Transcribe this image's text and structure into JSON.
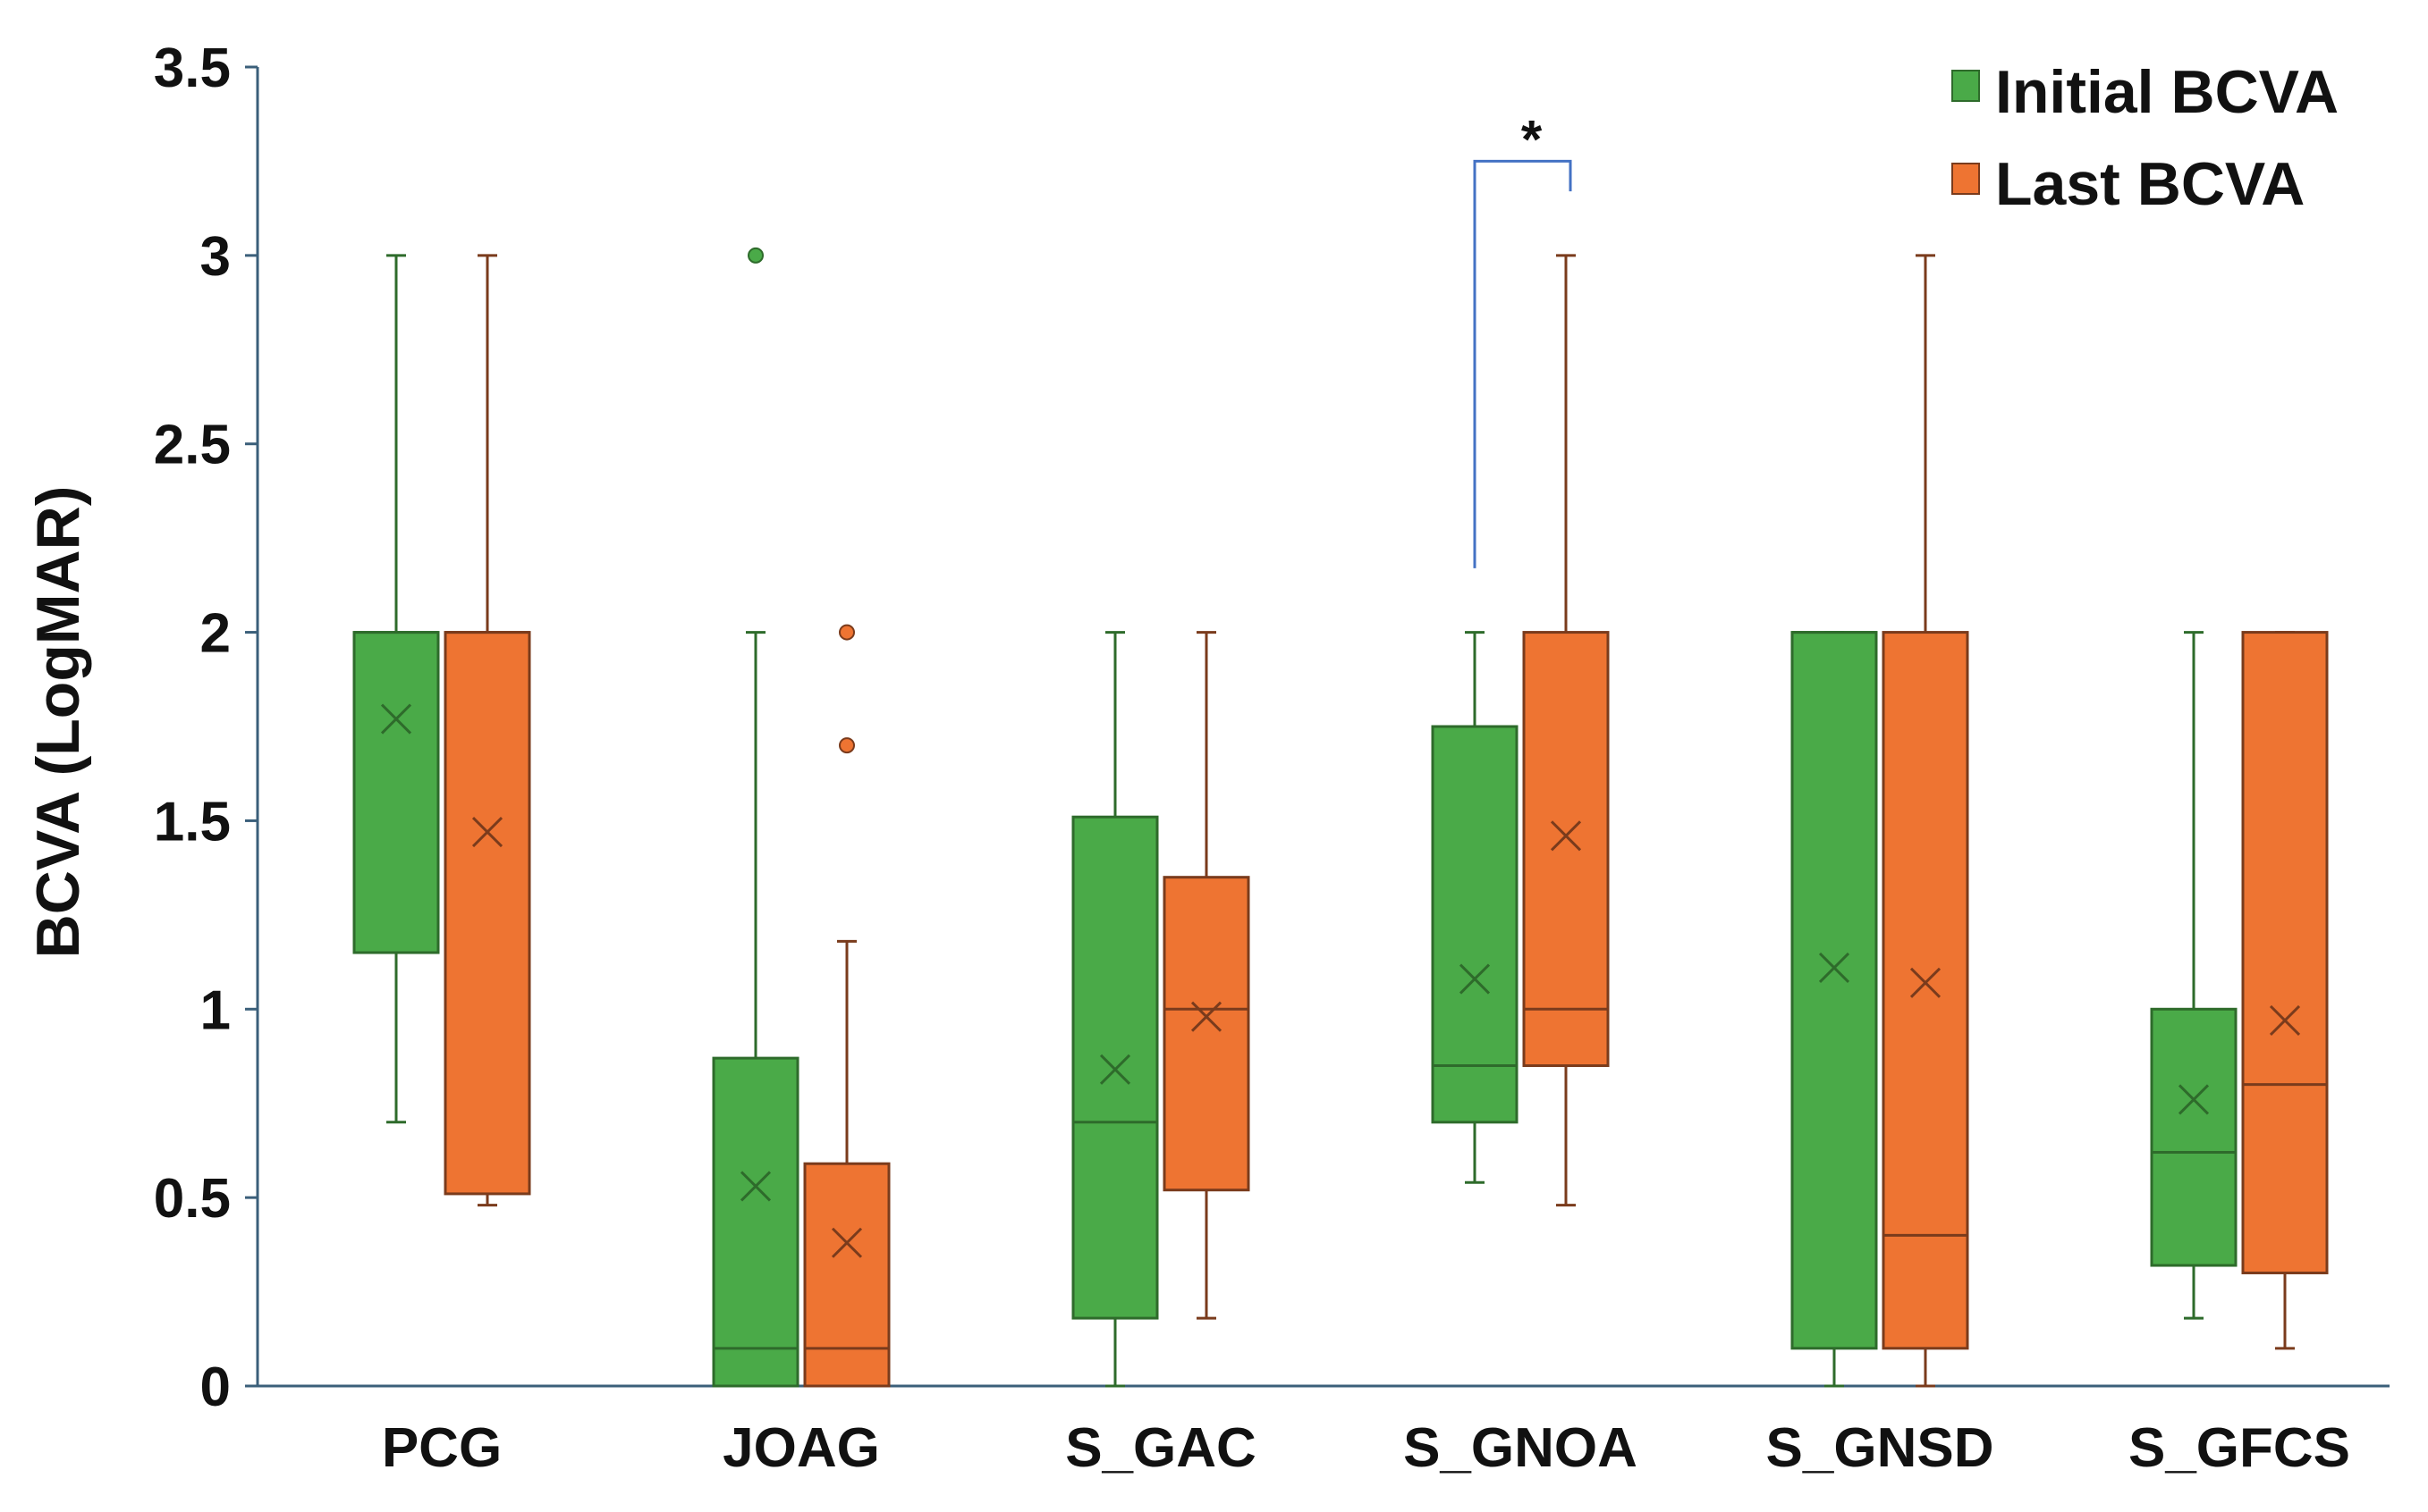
{
  "chart_data": {
    "type": "boxplot",
    "ylabel": "BCVA (LogMAR)",
    "xlabel": "",
    "ylim": [
      0,
      3.5
    ],
    "yticks": [
      {
        "value": 0,
        "label": "0"
      },
      {
        "value": 0.5,
        "label": "0.5"
      },
      {
        "value": 1,
        "label": "1"
      },
      {
        "value": 1.5,
        "label": "1.5"
      },
      {
        "value": 2,
        "label": "2"
      },
      {
        "value": 2.5,
        "label": "2.5"
      },
      {
        "value": 3,
        "label": "3"
      },
      {
        "value": 3.5,
        "label": "3.5"
      }
    ],
    "categories": [
      "PCG",
      "JOAG",
      "S_GAC",
      "S_GNOA",
      "S_GNSD",
      "S_GFCS"
    ],
    "legend_position": "top-right",
    "grid": false,
    "series": [
      {
        "name": "Initial BCVA",
        "color": "#4aaa48",
        "edge_color": "#2e6b2b",
        "boxes": [
          {
            "min": 0.7,
            "q1": 1.15,
            "median": 2.0,
            "q3": 2.0,
            "max": 3.0,
            "mean": 1.77,
            "outliers": []
          },
          {
            "min": 0.0,
            "q1": 0.0,
            "median": 0.1,
            "q3": 0.87,
            "max": 2.0,
            "mean": 0.53,
            "outliers": [
              3.0
            ]
          },
          {
            "min": 0.0,
            "q1": 0.18,
            "median": 0.7,
            "q3": 1.51,
            "max": 2.0,
            "mean": 0.84,
            "outliers": []
          },
          {
            "min": 0.54,
            "q1": 0.7,
            "median": 0.85,
            "q3": 1.75,
            "max": 2.0,
            "mean": 1.08,
            "outliers": []
          },
          {
            "min": 0.0,
            "q1": 0.1,
            "median": 2.0,
            "q3": 2.0,
            "max": 2.0,
            "mean": 1.11,
            "outliers": []
          },
          {
            "min": 0.18,
            "q1": 0.32,
            "median": 0.62,
            "q3": 1.0,
            "max": 2.0,
            "mean": 0.76,
            "outliers": []
          }
        ]
      },
      {
        "name": "Last BCVA",
        "color": "#ee7432",
        "edge_color": "#7a3b1c",
        "boxes": [
          {
            "min": 0.48,
            "q1": 0.51,
            "median": 2.0,
            "q3": 2.0,
            "max": 3.0,
            "mean": 1.47,
            "outliers": []
          },
          {
            "min": 0.0,
            "q1": 0.0,
            "median": 0.1,
            "q3": 0.59,
            "max": 1.18,
            "mean": 0.38,
            "outliers": [
              1.7,
              2.0
            ]
          },
          {
            "min": 0.18,
            "q1": 0.52,
            "median": 1.0,
            "q3": 1.35,
            "max": 2.0,
            "mean": 0.98,
            "outliers": []
          },
          {
            "min": 0.48,
            "q1": 0.85,
            "median": 1.0,
            "q3": 2.0,
            "max": 3.0,
            "mean": 1.46,
            "outliers": []
          },
          {
            "min": 0.0,
            "q1": 0.1,
            "median": 0.4,
            "q3": 2.0,
            "max": 3.0,
            "mean": 1.07,
            "outliers": []
          },
          {
            "min": 0.1,
            "q1": 0.3,
            "median": 0.8,
            "q3": 2.0,
            "max": 2.0,
            "mean": 0.97,
            "outliers": []
          }
        ]
      }
    ],
    "annotations": [
      {
        "category": "S_GNOA",
        "label": "*",
        "bracket_low": 2.17,
        "bracket_high": 3.25,
        "bracket_right_end": 3.17,
        "color": "#4472c4"
      }
    ]
  }
}
